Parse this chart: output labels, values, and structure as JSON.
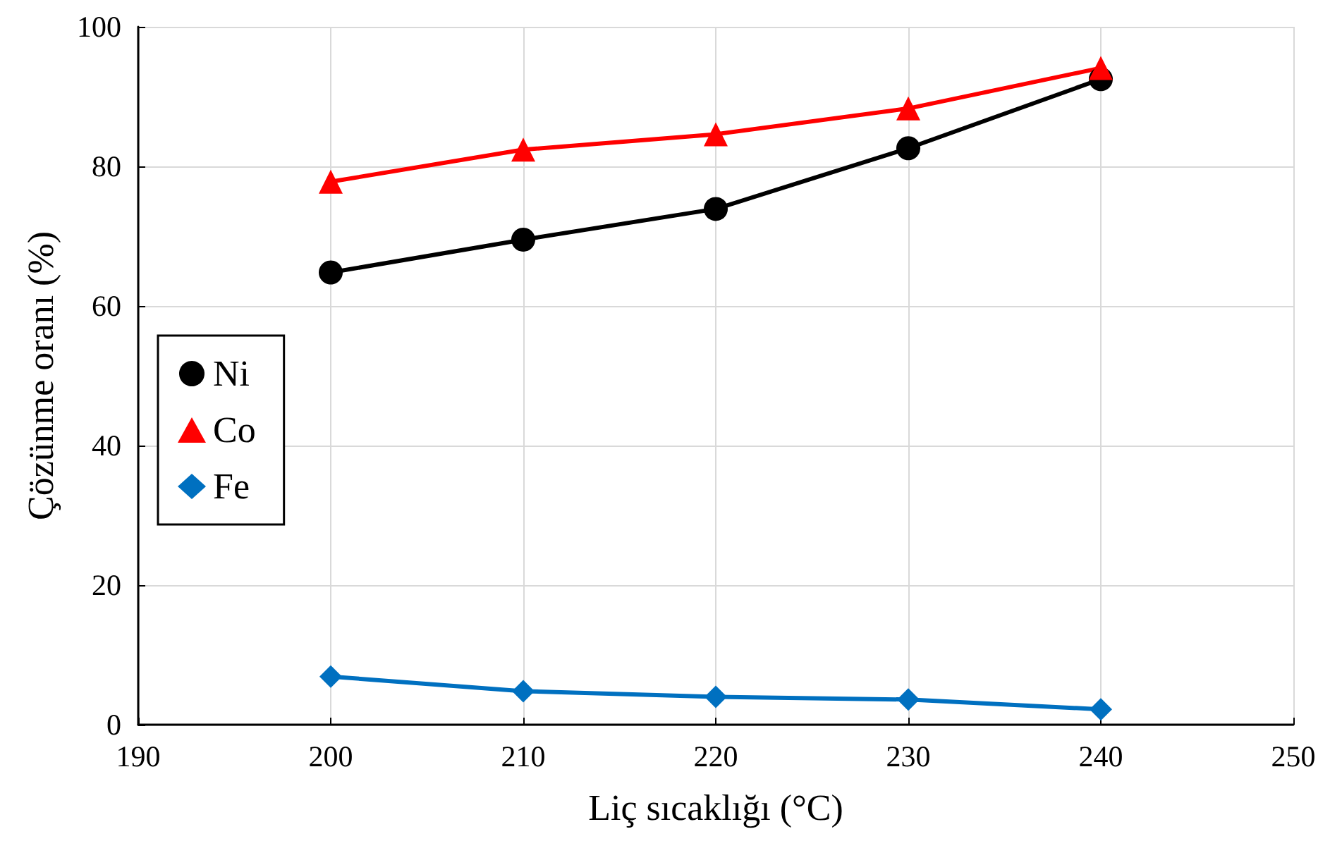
{
  "chart_data": {
    "type": "line",
    "xlabel": "Liç sıcaklığı (°C)",
    "ylabel": "Çözünme oranı (%)",
    "x": [
      200,
      210,
      220,
      230,
      240
    ],
    "series": [
      {
        "name": "Ni",
        "color": "#000000",
        "marker": "circle",
        "values": [
          64.8,
          69.5,
          73.9,
          82.6,
          92.5
        ]
      },
      {
        "name": "Co",
        "color": "#ff0000",
        "marker": "triangle",
        "values": [
          77.8,
          82.4,
          84.6,
          88.3,
          94.1
        ]
      },
      {
        "name": "Fe",
        "color": "#0070c0",
        "marker": "diamond",
        "values": [
          6.9,
          4.8,
          4.0,
          3.6,
          2.2
        ]
      }
    ],
    "xlim": [
      190,
      250
    ],
    "xticks": [
      190,
      200,
      210,
      220,
      230,
      240,
      250
    ],
    "ylim": [
      0,
      100
    ],
    "yticks": [
      0,
      20,
      40,
      60,
      80,
      100
    ],
    "grid": true,
    "legend": "left",
    "line_style": "solid"
  }
}
